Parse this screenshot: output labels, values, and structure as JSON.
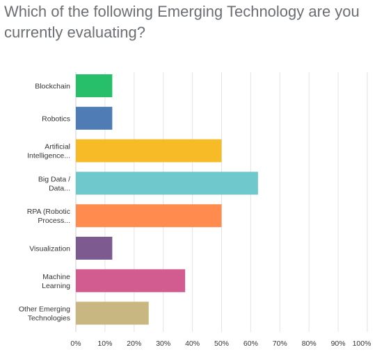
{
  "title": "Which of the following Emerging Technology are you currently evaluating?",
  "chart_data": {
    "type": "bar",
    "orientation": "horizontal",
    "title": "Which of the following Emerging Technology are you currently evaluating?",
    "xlabel": "",
    "ylabel": "",
    "xlim": [
      0,
      100
    ],
    "x_ticks": [
      "0%",
      "10%",
      "20%",
      "30%",
      "40%",
      "50%",
      "60%",
      "70%",
      "80%",
      "90%",
      "100%"
    ],
    "grid": "vertical",
    "legend": "none",
    "categories": [
      {
        "label": [
          "Blockchain"
        ],
        "value": 12.5,
        "color": "#27bf6a"
      },
      {
        "label": [
          "Robotics"
        ],
        "value": 12.5,
        "color": "#507cb6"
      },
      {
        "label": [
          "Artificial",
          "Intelligence..."
        ],
        "value": 50,
        "color": "#f7bb27"
      },
      {
        "label": [
          "Big Data /",
          "Data..."
        ],
        "value": 62.5,
        "color": "#6fc8cc"
      },
      {
        "label": [
          "RPA (Robotic",
          "Process..."
        ],
        "value": 50,
        "color": "#ff8b4f"
      },
      {
        "label": [
          "Visualization"
        ],
        "value": 12.5,
        "color": "#7d5a8f"
      },
      {
        "label": [
          "Machine",
          "Learning"
        ],
        "value": 37.5,
        "color": "#d25b8f"
      },
      {
        "label": [
          "Other Emerging",
          "Technologies"
        ],
        "value": 25,
        "color": "#c8b780"
      }
    ]
  }
}
